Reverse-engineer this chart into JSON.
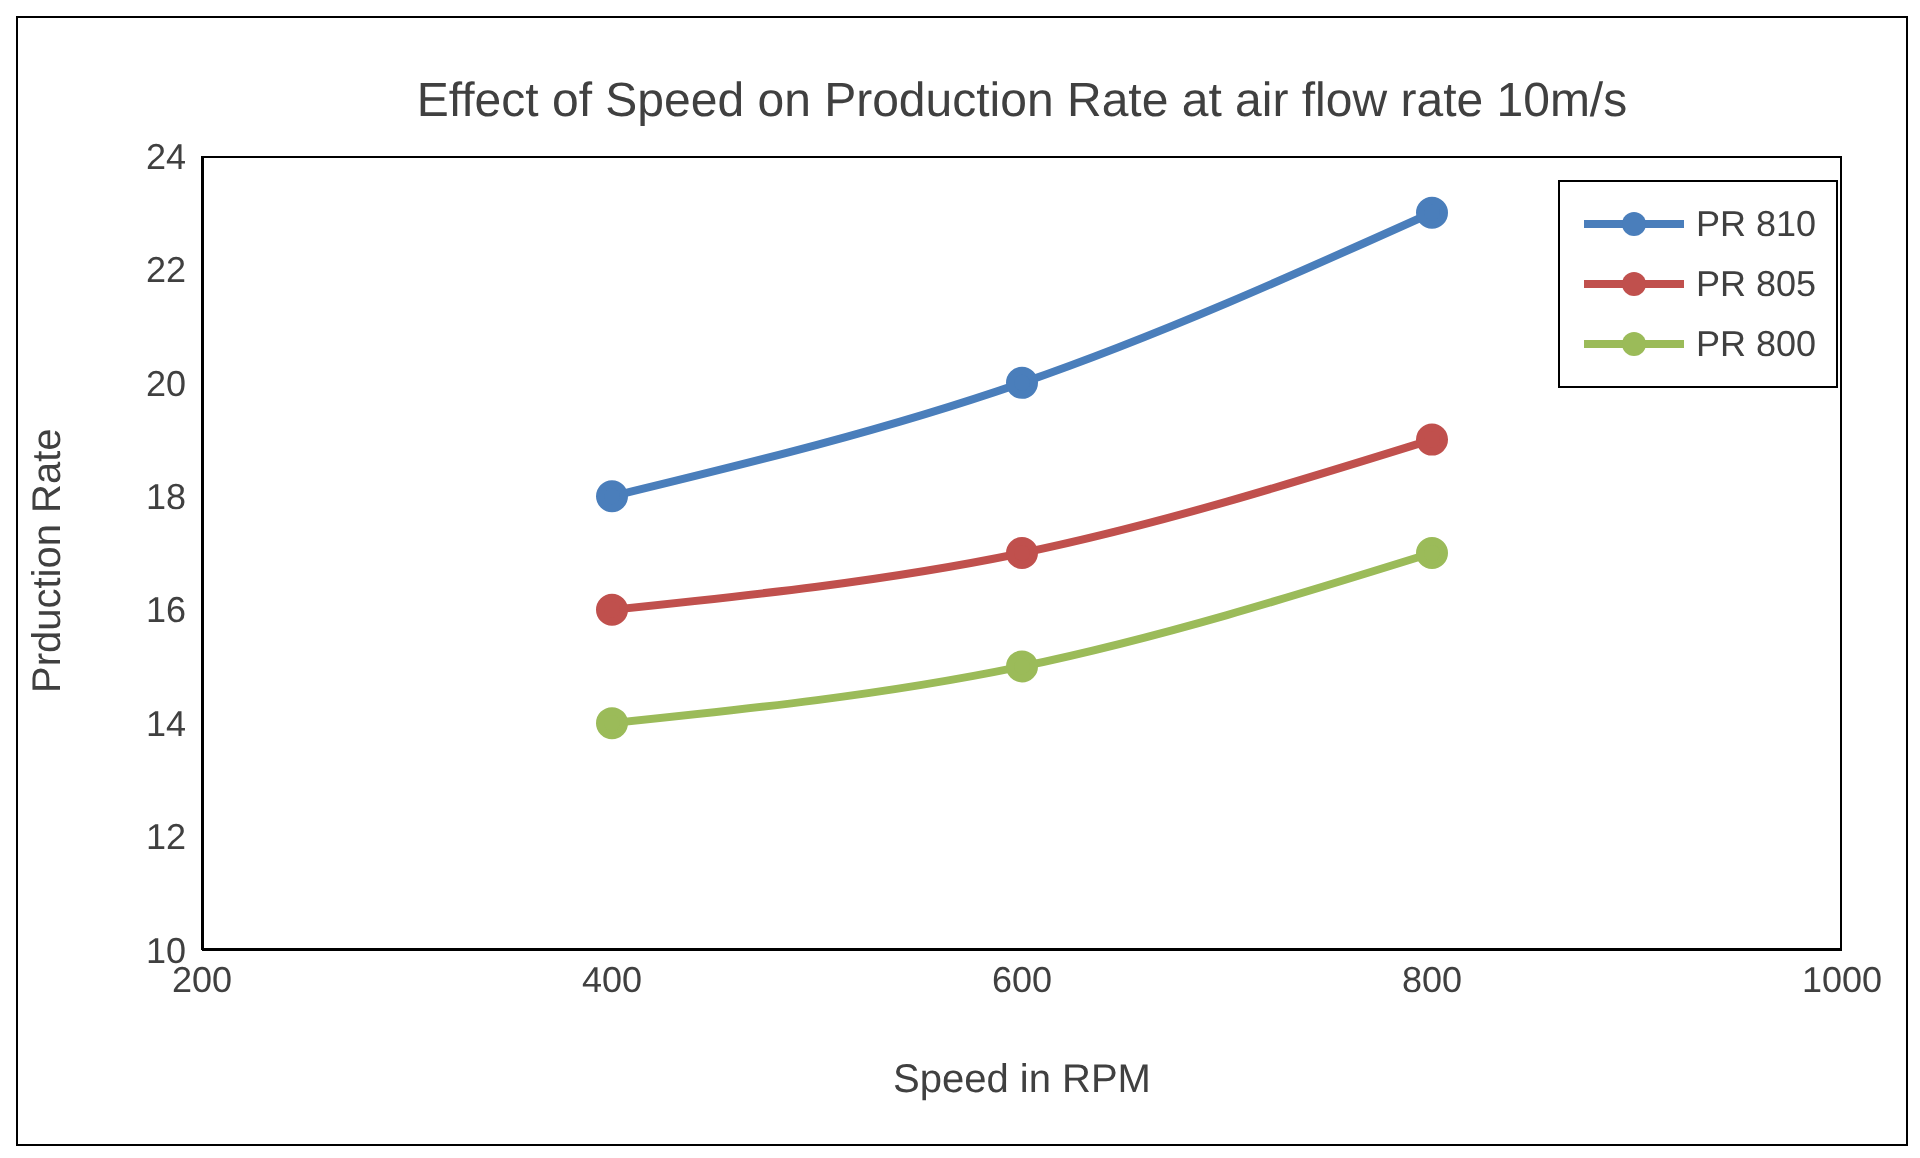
{
  "chart_data": {
    "type": "line",
    "title": "Effect of Speed on Production Rate at air flow rate 10m/s",
    "xlabel": "Speed in RPM",
    "ylabel": "Prduction Rate",
    "x": [
      400,
      600,
      800
    ],
    "series": [
      {
        "name": "PR 810",
        "color": "#4a7ebb",
        "values": [
          18,
          20,
          23
        ]
      },
      {
        "name": "PR 805",
        "color": "#c0504d",
        "values": [
          16,
          17,
          19
        ]
      },
      {
        "name": "PR 800",
        "color": "#9bbb59",
        "values": [
          14,
          15,
          17
        ]
      }
    ],
    "xlim": [
      200,
      1000
    ],
    "xticks": [
      200,
      400,
      600,
      800,
      1000
    ],
    "ylim": [
      10,
      24
    ],
    "yticks": [
      10,
      12,
      14,
      16,
      18,
      20,
      22,
      24
    ],
    "grid": false,
    "legend": "top right",
    "marker": "circle",
    "line_style": "solid"
  }
}
